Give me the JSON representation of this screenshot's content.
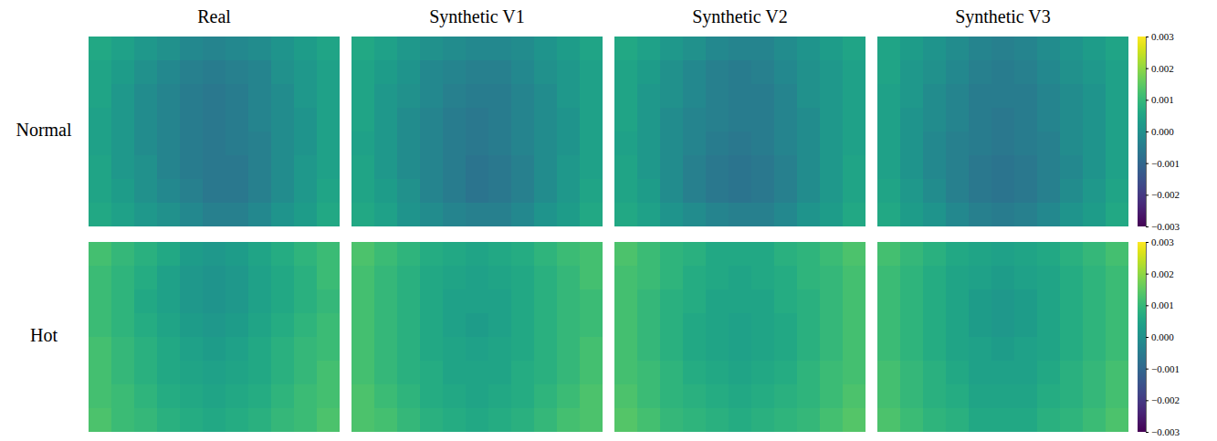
{
  "chart_data": {
    "type": "heatmap",
    "columns": [
      "Real",
      "Synthetic V1",
      "Synthetic V2",
      "Synthetic V3"
    ],
    "rows": [
      {
        "label": "Normal",
        "panels": [
          [
            [
              0.0006,
              0.0004,
              0.0002,
              0.0,
              -0.0002,
              -0.0003,
              -0.0002,
              -0.0001,
              0.0001,
              0.0003,
              0.0005
            ],
            [
              0.0005,
              0.0003,
              0.0,
              -0.0002,
              -0.0004,
              -0.0005,
              -0.0004,
              -0.0003,
              0.0,
              0.0002,
              0.0004
            ],
            [
              0.0005,
              0.0002,
              -0.0001,
              -0.0003,
              -0.0005,
              -0.0006,
              -0.0005,
              -0.0003,
              -0.0001,
              0.0002,
              0.0004
            ],
            [
              0.0004,
              0.0002,
              -0.0001,
              -0.0003,
              -0.0005,
              -0.0006,
              -0.0005,
              -0.0003,
              -0.0001,
              0.0001,
              0.0004
            ],
            [
              0.0004,
              0.0002,
              -0.0001,
              -0.0003,
              -0.0005,
              -0.0006,
              -0.0005,
              -0.0004,
              -0.0001,
              0.0001,
              0.0004
            ],
            [
              0.0005,
              0.0002,
              0.0,
              -0.0003,
              -0.0005,
              -0.0006,
              -0.0006,
              -0.0004,
              -0.0001,
              0.0002,
              0.0004
            ],
            [
              0.0005,
              0.0003,
              0.0,
              -0.0002,
              -0.0004,
              -0.0006,
              -0.0006,
              -0.0004,
              -0.0001,
              0.0002,
              0.0005
            ],
            [
              0.0006,
              0.0004,
              0.0002,
              0.0,
              -0.0002,
              -0.0004,
              -0.0004,
              -0.0002,
              0.0001,
              0.0003,
              0.0006
            ]
          ],
          [
            [
              0.0006,
              0.0004,
              0.0002,
              0.0,
              -0.0001,
              -0.0002,
              -0.0002,
              -0.0001,
              0.0001,
              0.0003,
              0.0005
            ],
            [
              0.0005,
              0.0003,
              0.0001,
              -0.0002,
              -0.0003,
              -0.0004,
              -0.0004,
              -0.0002,
              0.0,
              0.0002,
              0.0004
            ],
            [
              0.0005,
              0.0002,
              0.0,
              -0.0002,
              -0.0004,
              -0.0005,
              -0.0005,
              -0.0003,
              -0.0001,
              0.0002,
              0.0004
            ],
            [
              0.0005,
              0.0002,
              -0.0001,
              -0.0003,
              -0.0005,
              -0.0006,
              -0.0005,
              -0.0003,
              -0.0001,
              0.0001,
              0.0004
            ],
            [
              0.0004,
              0.0002,
              -0.0001,
              -0.0003,
              -0.0005,
              -0.0006,
              -0.0005,
              -0.0003,
              -0.0001,
              0.0001,
              0.0004
            ],
            [
              0.0005,
              0.0002,
              -0.0001,
              -0.0003,
              -0.0005,
              -0.0007,
              -0.0006,
              -0.0004,
              -0.0001,
              0.0002,
              0.0004
            ],
            [
              0.0005,
              0.0003,
              0.0,
              -0.0003,
              -0.0005,
              -0.0007,
              -0.0006,
              -0.0004,
              -0.0001,
              0.0002,
              0.0005
            ],
            [
              0.0006,
              0.0004,
              0.0001,
              -0.0001,
              -0.0003,
              -0.0004,
              -0.0004,
              -0.0002,
              0.0001,
              0.0003,
              0.0006
            ]
          ],
          [
            [
              0.0006,
              0.0004,
              0.0002,
              0.0,
              -0.0002,
              -0.0003,
              -0.0003,
              -0.0001,
              0.0001,
              0.0003,
              0.0005
            ],
            [
              0.0005,
              0.0003,
              0.0,
              -0.0002,
              -0.0004,
              -0.0005,
              -0.0004,
              -0.0002,
              0.0,
              0.0002,
              0.0004
            ],
            [
              0.0005,
              0.0002,
              0.0,
              -0.0002,
              -0.0004,
              -0.0005,
              -0.0005,
              -0.0003,
              0.0,
              0.0002,
              0.0004
            ],
            [
              0.0005,
              0.0002,
              -0.0001,
              -0.0003,
              -0.0004,
              -0.0005,
              -0.0005,
              -0.0003,
              -0.0001,
              0.0002,
              0.0004
            ],
            [
              0.0004,
              0.0002,
              -0.0001,
              -0.0003,
              -0.0005,
              -0.0006,
              -0.0005,
              -0.0003,
              -0.0001,
              0.0002,
              0.0004
            ],
            [
              0.0005,
              0.0002,
              -0.0001,
              -0.0004,
              -0.0006,
              -0.0007,
              -0.0006,
              -0.0004,
              -0.0001,
              0.0002,
              0.0005
            ],
            [
              0.0005,
              0.0003,
              -0.0001,
              -0.0004,
              -0.0006,
              -0.0007,
              -0.0006,
              -0.0004,
              -0.0001,
              0.0002,
              0.0005
            ],
            [
              0.0006,
              0.0004,
              0.0001,
              -0.0001,
              -0.0003,
              -0.0004,
              -0.0004,
              -0.0002,
              0.0001,
              0.0003,
              0.0006
            ]
          ],
          [
            [
              0.0005,
              0.0003,
              0.0001,
              -0.0001,
              -0.0003,
              -0.0004,
              -0.0003,
              -0.0001,
              0.0001,
              0.0003,
              0.0005
            ],
            [
              0.0005,
              0.0002,
              0.0,
              -0.0002,
              -0.0004,
              -0.0005,
              -0.0004,
              -0.0002,
              0.0,
              0.0002,
              0.0004
            ],
            [
              0.0004,
              0.0002,
              -0.0001,
              -0.0003,
              -0.0005,
              -0.0005,
              -0.0005,
              -0.0003,
              -0.0001,
              0.0001,
              0.0004
            ],
            [
              0.0004,
              0.0001,
              -0.0001,
              -0.0003,
              -0.0005,
              -0.0006,
              -0.0005,
              -0.0003,
              -0.0001,
              0.0001,
              0.0004
            ],
            [
              0.0004,
              0.0001,
              -0.0002,
              -0.0004,
              -0.0005,
              -0.0006,
              -0.0005,
              -0.0004,
              -0.0001,
              0.0001,
              0.0004
            ],
            [
              0.0004,
              0.0001,
              -0.0002,
              -0.0004,
              -0.0006,
              -0.0007,
              -0.0006,
              -0.0004,
              -0.0002,
              0.0001,
              0.0004
            ],
            [
              0.0005,
              0.0002,
              -0.0001,
              -0.0004,
              -0.0006,
              -0.0007,
              -0.0006,
              -0.0004,
              -0.0001,
              0.0002,
              0.0005
            ],
            [
              0.0006,
              0.0003,
              0.0001,
              -0.0002,
              -0.0004,
              -0.0005,
              -0.0004,
              -0.0002,
              0.0001,
              0.0003,
              0.0006
            ]
          ]
        ],
        "colorbar": {
          "range": [
            -0.003,
            0.003
          ],
          "ticks": [
            0.003,
            0.002,
            0.001,
            {
              "value": 0,
              "label": "0.000"
            },
            {
              "value": -0.001,
              "label": "−0.001"
            },
            {
              "value": -0.002,
              "label": "−0.002"
            },
            {
              "value": -0.003,
              "label": "−0.003"
            }
          ]
        }
      },
      {
        "label": "Hot",
        "panels": [
          [
            [
              0.0012,
              0.001,
              0.0008,
              0.0006,
              0.0003,
              0.0002,
              0.0003,
              0.0005,
              0.0007,
              0.0009,
              0.0011
            ],
            [
              0.0011,
              0.0009,
              0.0007,
              0.0004,
              0.0002,
              0.0001,
              0.0002,
              0.0004,
              0.0006,
              0.0008,
              0.0011
            ],
            [
              0.0011,
              0.0009,
              0.0006,
              0.0004,
              0.0002,
              0.0001,
              0.0002,
              0.0004,
              0.0006,
              0.0008,
              0.001
            ],
            [
              0.0011,
              0.0009,
              0.0007,
              0.0005,
              0.0003,
              0.0002,
              0.0003,
              0.0005,
              0.0007,
              0.0009,
              0.0011
            ],
            [
              0.0012,
              0.001,
              0.0008,
              0.0006,
              0.0004,
              0.0003,
              0.0004,
              0.0006,
              0.0008,
              0.001,
              0.0011
            ],
            [
              0.0012,
              0.001,
              0.0008,
              0.0006,
              0.0005,
              0.0004,
              0.0005,
              0.0006,
              0.0008,
              0.001,
              0.0012
            ],
            [
              0.0012,
              0.0011,
              0.0009,
              0.0007,
              0.0006,
              0.0005,
              0.0006,
              0.0007,
              0.0009,
              0.0011,
              0.0012
            ],
            [
              0.0013,
              0.0011,
              0.001,
              0.0008,
              0.0007,
              0.0006,
              0.0007,
              0.0008,
              0.001,
              0.0011,
              0.0013
            ]
          ],
          [
            [
              0.0013,
              0.0011,
              0.0009,
              0.0007,
              0.0006,
              0.0005,
              0.0006,
              0.0007,
              0.0009,
              0.0011,
              0.0012
            ],
            [
              0.0012,
              0.001,
              0.0008,
              0.0006,
              0.0005,
              0.0004,
              0.0005,
              0.0006,
              0.0008,
              0.001,
              0.0012
            ],
            [
              0.0012,
              0.001,
              0.0008,
              0.0006,
              0.0004,
              0.0004,
              0.0004,
              0.0006,
              0.0008,
              0.001,
              0.0011
            ],
            [
              0.0012,
              0.001,
              0.0008,
              0.0006,
              0.0004,
              0.0003,
              0.0004,
              0.0006,
              0.0008,
              0.001,
              0.0011
            ],
            [
              0.0012,
              0.001,
              0.0008,
              0.0006,
              0.0005,
              0.0004,
              0.0005,
              0.0006,
              0.0008,
              0.001,
              0.0012
            ],
            [
              0.0012,
              0.001,
              0.0008,
              0.0007,
              0.0005,
              0.0005,
              0.0005,
              0.0007,
              0.0008,
              0.001,
              0.0012
            ],
            [
              0.0013,
              0.0011,
              0.0009,
              0.0007,
              0.0006,
              0.0005,
              0.0006,
              0.0007,
              0.0009,
              0.0011,
              0.0013
            ],
            [
              0.0013,
              0.0012,
              0.001,
              0.0008,
              0.0007,
              0.0006,
              0.0007,
              0.0008,
              0.001,
              0.0012,
              0.0013
            ]
          ],
          [
            [
              0.0013,
              0.0011,
              0.0009,
              0.0008,
              0.0006,
              0.0006,
              0.0006,
              0.0008,
              0.0009,
              0.0011,
              0.0013
            ],
            [
              0.0012,
              0.0011,
              0.0009,
              0.0007,
              0.0006,
              0.0005,
              0.0006,
              0.0007,
              0.0009,
              0.001,
              0.0012
            ],
            [
              0.0012,
              0.001,
              0.0008,
              0.0007,
              0.0005,
              0.0005,
              0.0005,
              0.0007,
              0.0008,
              0.001,
              0.0012
            ],
            [
              0.0012,
              0.001,
              0.0008,
              0.0006,
              0.0005,
              0.0004,
              0.0005,
              0.0006,
              0.0008,
              0.001,
              0.0012
            ],
            [
              0.0012,
              0.001,
              0.0008,
              0.0006,
              0.0005,
              0.0004,
              0.0005,
              0.0006,
              0.0008,
              0.001,
              0.0012
            ],
            [
              0.0012,
              0.0011,
              0.0009,
              0.0007,
              0.0006,
              0.0005,
              0.0006,
              0.0007,
              0.0009,
              0.0011,
              0.0012
            ],
            [
              0.0013,
              0.0011,
              0.0009,
              0.0008,
              0.0007,
              0.0006,
              0.0007,
              0.0008,
              0.0009,
              0.0011,
              0.0013
            ],
            [
              0.0014,
              0.0012,
              0.001,
              0.0009,
              0.0008,
              0.0007,
              0.0008,
              0.0009,
              0.001,
              0.0012,
              0.0014
            ]
          ],
          [
            [
              0.0012,
              0.001,
              0.0008,
              0.0006,
              0.0005,
              0.0004,
              0.0005,
              0.0006,
              0.0008,
              0.001,
              0.0012
            ],
            [
              0.0011,
              0.0009,
              0.0007,
              0.0005,
              0.0004,
              0.0003,
              0.0004,
              0.0005,
              0.0007,
              0.0009,
              0.0011
            ],
            [
              0.0011,
              0.0009,
              0.0007,
              0.0005,
              0.0003,
              0.0002,
              0.0003,
              0.0005,
              0.0007,
              0.0009,
              0.0011
            ],
            [
              0.0011,
              0.0009,
              0.0007,
              0.0005,
              0.0003,
              0.0002,
              0.0003,
              0.0005,
              0.0007,
              0.0009,
              0.0011
            ],
            [
              0.0011,
              0.0009,
              0.0007,
              0.0005,
              0.0004,
              0.0003,
              0.0004,
              0.0005,
              0.0007,
              0.0009,
              0.0011
            ],
            [
              0.0012,
              0.001,
              0.0008,
              0.0006,
              0.0004,
              0.0004,
              0.0004,
              0.0006,
              0.0008,
              0.001,
              0.0012
            ],
            [
              0.0012,
              0.001,
              0.0008,
              0.0007,
              0.0005,
              0.0005,
              0.0005,
              0.0007,
              0.0008,
              0.001,
              0.0012
            ],
            [
              0.0013,
              0.0011,
              0.0009,
              0.0008,
              0.0006,
              0.0006,
              0.0006,
              0.0008,
              0.0009,
              0.0011,
              0.0013
            ]
          ]
        ],
        "colorbar": {
          "range": [
            -0.003,
            0.003
          ],
          "ticks": [
            0.003,
            0.002,
            0.001,
            {
              "value": 0,
              "label": "0.000"
            },
            {
              "value": -0.001,
              "label": "−0.001"
            },
            {
              "value": -0.002,
              "label": "−0.002"
            },
            {
              "value": -0.003,
              "label": "−0.003"
            }
          ]
        }
      }
    ]
  }
}
